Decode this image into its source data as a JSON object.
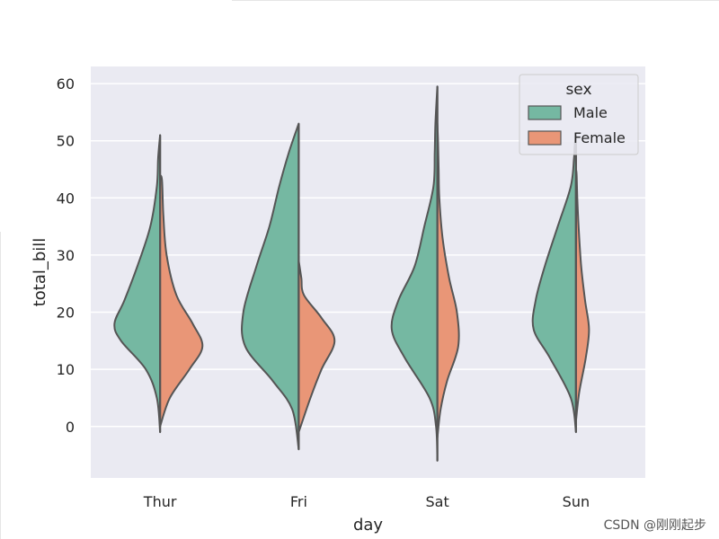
{
  "chart_data": {
    "type": "violin",
    "split": true,
    "xlabel": "day",
    "ylabel": "total_bill",
    "categories": [
      "Thur",
      "Fri",
      "Sat",
      "Sun"
    ],
    "yticks": [
      0,
      10,
      20,
      30,
      40,
      50,
      60
    ],
    "ylim": [
      -9,
      63
    ],
    "grid": true,
    "legend": {
      "title": "sex",
      "placement": "top-right"
    },
    "colors": {
      "Male": "#75b8a2",
      "Female": "#e99677",
      "outline": "#555555",
      "plot_bg": "#eaeaf2",
      "grid": "#ffffff"
    },
    "series": [
      {
        "name": "Male",
        "side": "left",
        "violins": [
          {
            "category": "Thur",
            "profile": [
              [
                -1,
                0
              ],
              [
                5,
                0.05
              ],
              [
                10,
                0.22
              ],
              [
                15,
                0.6
              ],
              [
                18,
                0.7
              ],
              [
                22,
                0.55
              ],
              [
                28,
                0.35
              ],
              [
                35,
                0.15
              ],
              [
                42,
                0.05
              ],
              [
                47,
                0.03
              ],
              [
                51,
                0
              ]
            ]
          },
          {
            "category": "Fri",
            "profile": [
              [
                -4,
                0
              ],
              [
                3,
                0.1
              ],
              [
                8,
                0.4
              ],
              [
                14,
                0.82
              ],
              [
                20,
                0.85
              ],
              [
                28,
                0.65
              ],
              [
                35,
                0.45
              ],
              [
                42,
                0.3
              ],
              [
                48,
                0.15
              ],
              [
                53,
                0
              ]
            ]
          },
          {
            "category": "Sat",
            "profile": [
              [
                -6,
                0
              ],
              [
                0,
                0.02
              ],
              [
                5,
                0.12
              ],
              [
                12,
                0.5
              ],
              [
                17,
                0.7
              ],
              [
                22,
                0.6
              ],
              [
                28,
                0.35
              ],
              [
                35,
                0.2
              ],
              [
                42,
                0.06
              ],
              [
                48,
                0.04
              ],
              [
                53,
                0.03
              ],
              [
                59.5,
                0
              ]
            ]
          },
          {
            "category": "Sun",
            "profile": [
              [
                -1,
                0
              ],
              [
                5,
                0.08
              ],
              [
                12,
                0.4
              ],
              [
                17,
                0.65
              ],
              [
                22,
                0.62
              ],
              [
                28,
                0.48
              ],
              [
                35,
                0.28
              ],
              [
                42,
                0.08
              ],
              [
                47,
                0.03
              ],
              [
                49,
                0.02
              ],
              [
                51,
                0
              ]
            ]
          }
        ]
      },
      {
        "name": "Female",
        "side": "right",
        "violins": [
          {
            "category": "Thur",
            "profile": [
              [
                0,
                0
              ],
              [
                5,
                0.15
              ],
              [
                10,
                0.45
              ],
              [
                14,
                0.65
              ],
              [
                18,
                0.5
              ],
              [
                23,
                0.25
              ],
              [
                30,
                0.1
              ],
              [
                37,
                0.05
              ],
              [
                43,
                0.03
              ],
              [
                44,
                0
              ]
            ]
          },
          {
            "category": "Fri",
            "profile": [
              [
                -1,
                0
              ],
              [
                5,
                0.18
              ],
              [
                10,
                0.35
              ],
              [
                15,
                0.55
              ],
              [
                19,
                0.35
              ],
              [
                23,
                0.08
              ],
              [
                26,
                0.04
              ],
              [
                29,
                0
              ]
            ]
          },
          {
            "category": "Sat",
            "profile": [
              [
                -2,
                0
              ],
              [
                3,
                0.05
              ],
              [
                8,
                0.15
              ],
              [
                14,
                0.32
              ],
              [
                20,
                0.3
              ],
              [
                26,
                0.18
              ],
              [
                33,
                0.08
              ],
              [
                40,
                0.03
              ],
              [
                45,
                0.02
              ],
              [
                50,
                0.01
              ],
              [
                53,
                0
              ]
            ]
          },
          {
            "category": "Sun",
            "profile": [
              [
                1,
                0
              ],
              [
                6,
                0.05
              ],
              [
                12,
                0.15
              ],
              [
                17,
                0.2
              ],
              [
                22,
                0.14
              ],
              [
                28,
                0.08
              ],
              [
                35,
                0.04
              ],
              [
                40,
                0.02
              ],
              [
                44,
                0.01
              ],
              [
                45,
                0
              ]
            ]
          }
        ]
      }
    ]
  },
  "watermark": "CSDN @刚刚起步"
}
